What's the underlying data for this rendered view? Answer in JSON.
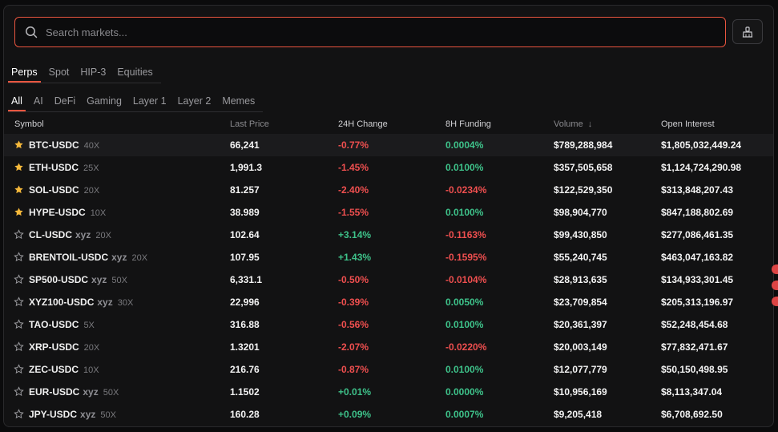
{
  "search": {
    "placeholder": "Search markets..."
  },
  "tabs_primary": [
    "Perps",
    "Spot",
    "HIP-3",
    "Equities"
  ],
  "tabs_secondary": [
    "All",
    "AI",
    "DeFi",
    "Gaming",
    "Layer 1",
    "Layer 2",
    "Memes"
  ],
  "columns": {
    "symbol": "Symbol",
    "last_price": "Last Price",
    "change": "24H Change",
    "funding": "8H Funding",
    "volume": "Volume",
    "volume_sort": "↓",
    "open_interest": "Open Interest"
  },
  "colors": {
    "accent": "#e8553f",
    "positive": "#3ec28a",
    "negative": "#ef4f4f",
    "star": "#f6b93b"
  },
  "rows": [
    {
      "fav": true,
      "symbol": "BTC-USDC",
      "xyz": "",
      "lev": "40X",
      "price": "66,241",
      "change": "-0.77%",
      "funding": "0.0004%",
      "volume": "$789,288,984",
      "oi": "$1,805,032,449.24"
    },
    {
      "fav": true,
      "symbol": "ETH-USDC",
      "xyz": "",
      "lev": "25X",
      "price": "1,991.3",
      "change": "-1.45%",
      "funding": "0.0100%",
      "volume": "$357,505,658",
      "oi": "$1,124,724,290.98"
    },
    {
      "fav": true,
      "symbol": "SOL-USDC",
      "xyz": "",
      "lev": "20X",
      "price": "81.257",
      "change": "-2.40%",
      "funding": "-0.0234%",
      "volume": "$122,529,350",
      "oi": "$313,848,207.43"
    },
    {
      "fav": true,
      "symbol": "HYPE-USDC",
      "xyz": "",
      "lev": "10X",
      "price": "38.989",
      "change": "-1.55%",
      "funding": "0.0100%",
      "volume": "$98,904,770",
      "oi": "$847,188,802.69"
    },
    {
      "fav": false,
      "symbol": "CL-USDC",
      "xyz": "xyz",
      "lev": "20X",
      "price": "102.64",
      "change": "+3.14%",
      "funding": "-0.1163%",
      "volume": "$99,430,850",
      "oi": "$277,086,461.35"
    },
    {
      "fav": false,
      "symbol": "BRENTOIL-USDC",
      "xyz": "xyz",
      "lev": "20X",
      "price": "107.95",
      "change": "+1.43%",
      "funding": "-0.1595%",
      "volume": "$55,240,745",
      "oi": "$463,047,163.82"
    },
    {
      "fav": false,
      "symbol": "SP500-USDC",
      "xyz": "xyz",
      "lev": "50X",
      "price": "6,331.1",
      "change": "-0.50%",
      "funding": "-0.0104%",
      "volume": "$28,913,635",
      "oi": "$134,933,301.45"
    },
    {
      "fav": false,
      "symbol": "XYZ100-USDC",
      "xyz": "xyz",
      "lev": "30X",
      "price": "22,996",
      "change": "-0.39%",
      "funding": "0.0050%",
      "volume": "$23,709,854",
      "oi": "$205,313,196.97"
    },
    {
      "fav": false,
      "symbol": "TAO-USDC",
      "xyz": "",
      "lev": "5X",
      "price": "316.88",
      "change": "-0.56%",
      "funding": "0.0100%",
      "volume": "$20,361,397",
      "oi": "$52,248,454.68"
    },
    {
      "fav": false,
      "symbol": "XRP-USDC",
      "xyz": "",
      "lev": "20X",
      "price": "1.3201",
      "change": "-2.07%",
      "funding": "-0.0220%",
      "volume": "$20,003,149",
      "oi": "$77,832,471.67"
    },
    {
      "fav": false,
      "symbol": "ZEC-USDC",
      "xyz": "",
      "lev": "10X",
      "price": "216.76",
      "change": "-0.87%",
      "funding": "0.0100%",
      "volume": "$12,077,779",
      "oi": "$50,150,498.95"
    },
    {
      "fav": false,
      "symbol": "EUR-USDC",
      "xyz": "xyz",
      "lev": "50X",
      "price": "1.1502",
      "change": "+0.01%",
      "funding": "0.0000%",
      "volume": "$10,956,169",
      "oi": "$8,113,347.04"
    },
    {
      "fav": false,
      "symbol": "JPY-USDC",
      "xyz": "xyz",
      "lev": "50X",
      "price": "160.28",
      "change": "+0.09%",
      "funding": "0.0007%",
      "volume": "$9,205,418",
      "oi": "$6,708,692.50"
    }
  ]
}
